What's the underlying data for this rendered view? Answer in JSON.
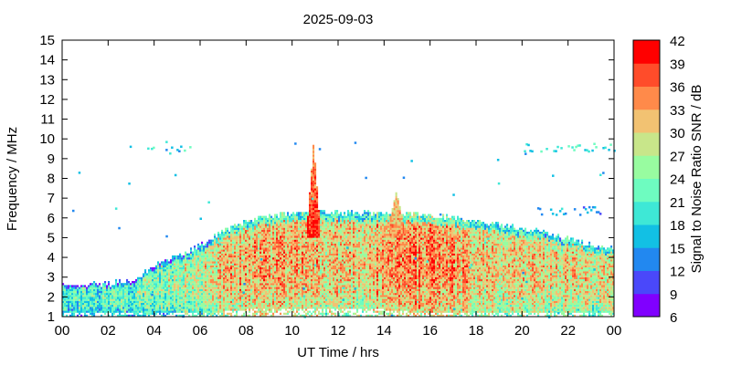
{
  "chart_data": {
    "type": "heatmap",
    "title": "2025-09-03",
    "xlabel": "UT Time / hrs",
    "ylabel": "Frequency / MHz",
    "xlim": [
      0,
      24
    ],
    "ylim": [
      1,
      15
    ],
    "x_ticks": [
      "00",
      "02",
      "04",
      "06",
      "08",
      "10",
      "12",
      "14",
      "16",
      "18",
      "20",
      "22",
      "00"
    ],
    "y_ticks": [
      "1",
      "2",
      "3",
      "4",
      "5",
      "6",
      "7",
      "8",
      "9",
      "10",
      "11",
      "12",
      "13",
      "14",
      "15"
    ],
    "colorbar": {
      "label": "Signal to Noise Ratio SNR / dB",
      "range": [
        6,
        42
      ],
      "ticks": [
        "6",
        "9",
        "12",
        "15",
        "18",
        "21",
        "24",
        "27",
        "30",
        "33",
        "36",
        "39",
        "42"
      ],
      "colors": [
        "#8000ff",
        "#4a48fa",
        "#2288f0",
        "#12c0e4",
        "#3ee8d6",
        "#6efcc0",
        "#98fca0",
        "#c8e68a",
        "#f2c272",
        "#ff8a4a",
        "#ff4c2a",
        "#ff0000"
      ]
    },
    "hours": [
      0,
      1,
      2,
      3,
      4,
      5,
      6,
      7,
      8,
      9,
      10,
      11,
      12,
      13,
      14,
      15,
      16,
      17,
      18,
      19,
      20,
      21,
      22,
      23,
      24
    ],
    "upper_freq_mhz": [
      2.6,
      2.6,
      2.6,
      2.8,
      3.6,
      4.0,
      4.6,
      5.3,
      5.8,
      6.0,
      6.2,
      6.2,
      6.2,
      6.2,
      6.2,
      6.1,
      6.1,
      6.0,
      5.8,
      5.6,
      5.4,
      5.2,
      4.9,
      4.6,
      4.4
    ],
    "lower_freq_mhz": [
      1.2,
      1.2,
      1.2,
      1.2,
      1.2,
      1.2,
      1.2,
      1.2,
      1.3,
      1.4,
      1.4,
      1.4,
      1.4,
      1.4,
      1.3,
      1.2,
      1.2,
      1.2,
      1.2,
      1.2,
      1.2,
      1.2,
      1.2,
      1.2,
      1.2
    ],
    "mean_snr_db": [
      21,
      21,
      22,
      23,
      25,
      26,
      28,
      31,
      32,
      33,
      33,
      32,
      31,
      31,
      34,
      35,
      35,
      34,
      31,
      30,
      30,
      30,
      30,
      29,
      29
    ],
    "spikes": [
      {
        "time_hrs": 10.9,
        "top_freq_mhz": 9.8,
        "snr_db": 40
      },
      {
        "time_hrs": 14.5,
        "top_freq_mhz": 7.3,
        "snr_db": 34
      }
    ],
    "sporadic_traces": [
      {
        "start_hrs": 3.7,
        "end_hrs": 5.6,
        "freq_mhz": 9.5,
        "snr_db": 18
      },
      {
        "start_hrs": 20.0,
        "end_hrs": 24.0,
        "freq_mhz": 9.6,
        "snr_db": 20
      },
      {
        "start_hrs": 20.5,
        "end_hrs": 23.5,
        "freq_mhz": 6.4,
        "snr_db": 15
      }
    ]
  }
}
